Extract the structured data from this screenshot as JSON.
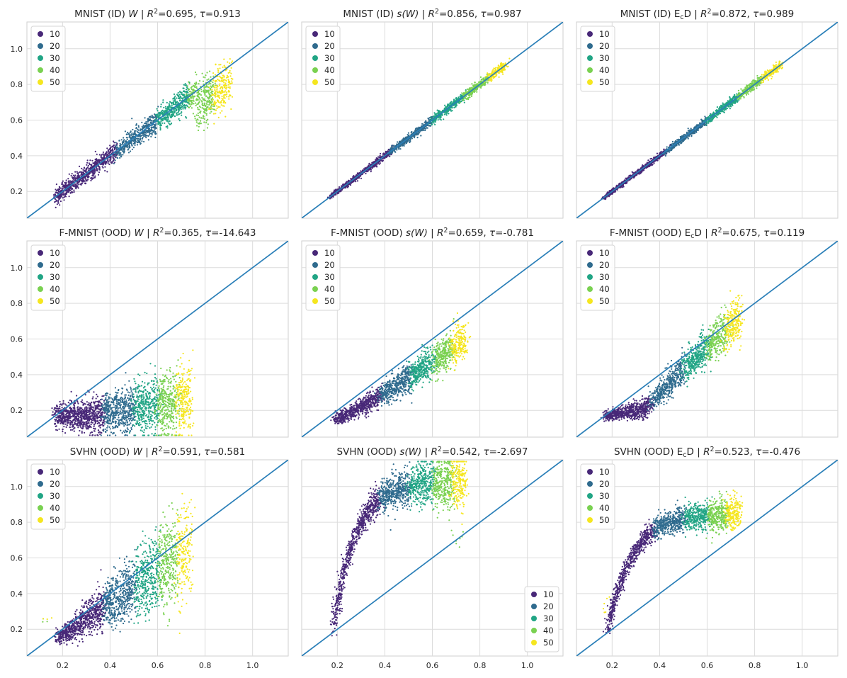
{
  "figure": {
    "description_type": "3x3 grid of scatter plots with identity line"
  },
  "shared": {
    "x_ticks": [
      0.2,
      0.4,
      0.6,
      0.8,
      1.0
    ],
    "x_tick_labels": [
      "0.2",
      "0.4",
      "0.6",
      "0.8",
      "1.0"
    ],
    "y_ticks": [
      0.2,
      0.4,
      0.6,
      0.8,
      1.0
    ],
    "y_tick_labels": [
      "0.2",
      "0.4",
      "0.6",
      "0.8",
      "1.0"
    ],
    "xlim": [
      0.05,
      1.15
    ],
    "ylim": [
      0.05,
      1.15
    ],
    "hue_levels": [
      10,
      20,
      30,
      40,
      50
    ],
    "hue_labels": [
      "10",
      "20",
      "30",
      "40",
      "50"
    ],
    "colors": {
      "10": "#482878",
      "20": "#2f6b8e",
      "30": "#21a585",
      "40": "#7ad151",
      "50": "#f5e61f",
      "diagonal": "#2a7fb8",
      "grid": "#dcdcdc"
    }
  },
  "chart_data": [
    {
      "type": "scatter",
      "title_prefix": "MNIST (ID)",
      "metric": "W",
      "metric_style": "italic",
      "r2": "0.695",
      "tau": "0.913",
      "title": "MNIST (ID) W | R^2=0.695, τ=0.913",
      "xlabel": "",
      "ylabel": "",
      "legend": "top-left",
      "pattern": "mnist_w"
    },
    {
      "type": "scatter",
      "title_prefix": "MNIST (ID)",
      "metric": "s(W)",
      "metric_style": "italic",
      "r2": "0.856",
      "tau": "0.987",
      "title": "MNIST (ID) s(W) | R^2=0.856, τ=0.987",
      "xlabel": "",
      "ylabel": "",
      "legend": "top-left",
      "pattern": "mnist_sw"
    },
    {
      "type": "scatter",
      "title_prefix": "MNIST (ID)",
      "metric": "EcD",
      "metric_style": "sub",
      "r2": "0.872",
      "tau": "0.989",
      "title": "MNIST (ID) EcD | R^2=0.872, τ=0.989",
      "xlabel": "",
      "ylabel": "",
      "legend": "top-left",
      "pattern": "mnist_ecd"
    },
    {
      "type": "scatter",
      "title_prefix": "F-MNIST (OOD)",
      "metric": "W",
      "metric_style": "italic",
      "r2": "0.365",
      "tau": "-14.643",
      "title": "F-MNIST (OOD) W | R^2=0.365, τ=-14.643",
      "xlabel": "",
      "ylabel": "",
      "legend": "top-left",
      "pattern": "fmnist_w"
    },
    {
      "type": "scatter",
      "title_prefix": "F-MNIST (OOD)",
      "metric": "s(W)",
      "metric_style": "italic",
      "r2": "0.659",
      "tau": "-0.781",
      "title": "F-MNIST (OOD) s(W) | R^2=0.659, τ=-0.781",
      "xlabel": "",
      "ylabel": "",
      "legend": "top-left",
      "pattern": "fmnist_sw"
    },
    {
      "type": "scatter",
      "title_prefix": "F-MNIST (OOD)",
      "metric": "EcD",
      "metric_style": "sub",
      "r2": "0.675",
      "tau": "0.119",
      "title": "F-MNIST (OOD) EcD | R^2=0.675, τ=0.119",
      "xlabel": "",
      "ylabel": "",
      "legend": "top-left",
      "pattern": "fmnist_ecd"
    },
    {
      "type": "scatter",
      "title_prefix": "SVHN (OOD)",
      "metric": "W",
      "metric_style": "italic",
      "r2": "0.591",
      "tau": "0.581",
      "title": "SVHN (OOD) W | R^2=0.591, τ=0.581",
      "xlabel": "",
      "ylabel": "",
      "legend": "top-left",
      "pattern": "svhn_w"
    },
    {
      "type": "scatter",
      "title_prefix": "SVHN (OOD)",
      "metric": "s(W)",
      "metric_style": "italic",
      "r2": "0.542",
      "tau": "-2.697",
      "title": "SVHN (OOD) s(W) | R^2=0.542, τ=-2.697",
      "xlabel": "",
      "ylabel": "",
      "legend": "bottom-right",
      "pattern": "svhn_sw"
    },
    {
      "type": "scatter",
      "title_prefix": "SVHN (OOD)",
      "metric": "EcD",
      "metric_style": "sub",
      "r2": "0.523",
      "tau": "-0.476",
      "title": "SVHN (OOD) EcD | R^2=0.523, τ=-0.476",
      "xlabel": "",
      "ylabel": "",
      "legend": "top-left",
      "pattern": "svhn_ecd"
    }
  ]
}
